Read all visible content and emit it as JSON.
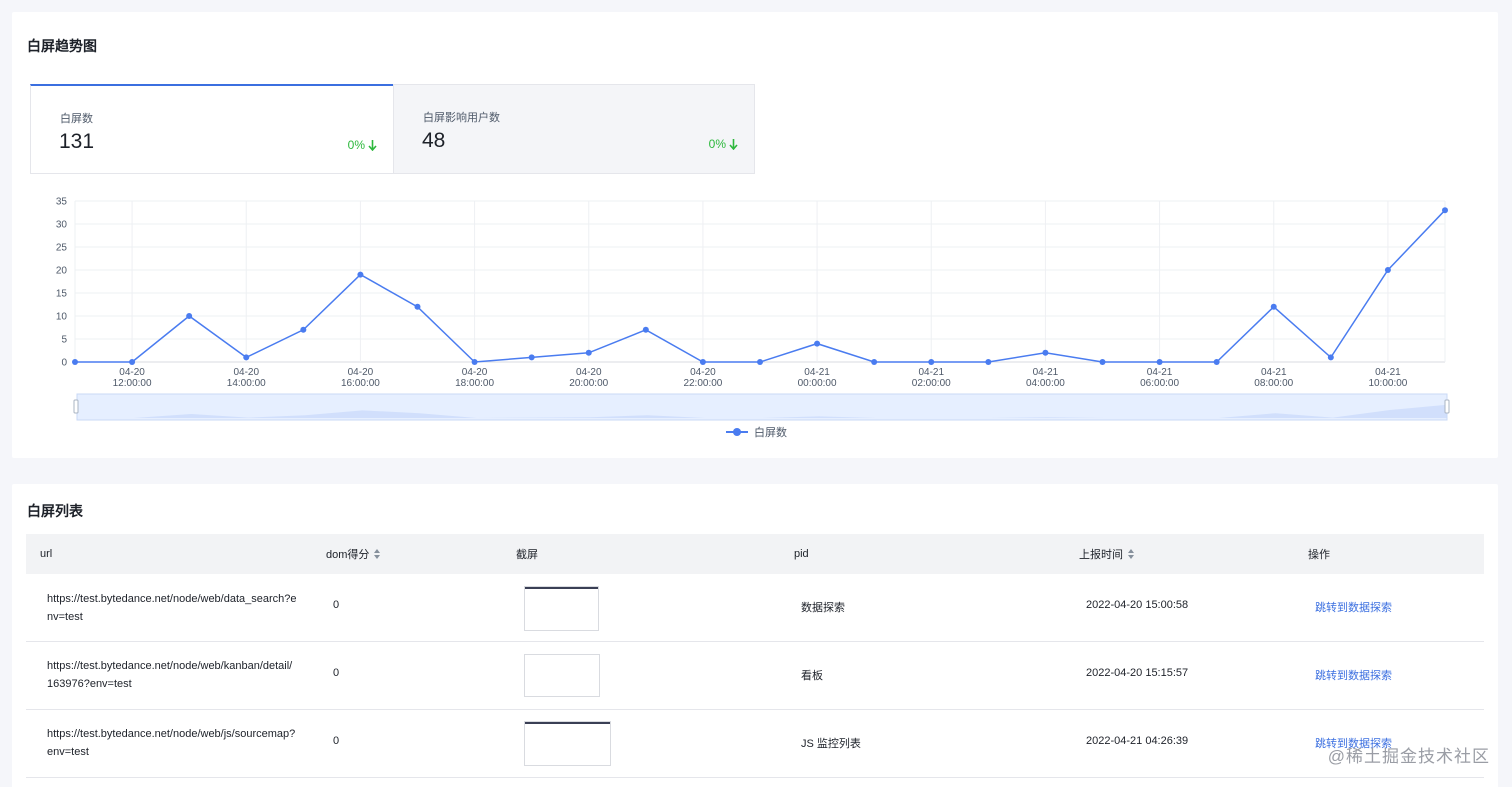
{
  "trend": {
    "title": "白屏趋势图",
    "metrics": [
      {
        "label": "白屏数",
        "value": "131",
        "change": "0%",
        "active": true
      },
      {
        "label": "白屏影响用户数",
        "value": "48",
        "change": "0%",
        "active": false
      }
    ]
  },
  "chart_data": {
    "type": "line",
    "x": [
      "04-20 11:00",
      "04-20 12:00",
      "04-20 13:00",
      "04-20 14:00",
      "04-20 15:00",
      "04-20 16:00",
      "04-20 17:00",
      "04-20 18:00",
      "04-20 19:00",
      "04-20 20:00",
      "04-20 21:00",
      "04-20 22:00",
      "04-20 23:00",
      "04-21 00:00",
      "04-21 01:00",
      "04-21 02:00",
      "04-21 03:00",
      "04-21 04:00",
      "04-21 05:00",
      "04-21 06:00",
      "04-21 07:00",
      "04-21 08:00",
      "04-21 09:00",
      "04-21 10:00",
      "04-21 11:00"
    ],
    "tick_labels": [
      {
        "date": "04-20",
        "time": "12:00:00"
      },
      {
        "date": "04-20",
        "time": "14:00:00"
      },
      {
        "date": "04-20",
        "time": "16:00:00"
      },
      {
        "date": "04-20",
        "time": "18:00:00"
      },
      {
        "date": "04-20",
        "time": "20:00:00"
      },
      {
        "date": "04-20",
        "time": "22:00:00"
      },
      {
        "date": "04-21",
        "time": "00:00:00"
      },
      {
        "date": "04-21",
        "time": "02:00:00"
      },
      {
        "date": "04-21",
        "time": "04:00:00"
      },
      {
        "date": "04-21",
        "time": "06:00:00"
      },
      {
        "date": "04-21",
        "time": "08:00:00"
      },
      {
        "date": "04-21",
        "time": "10:00:00"
      }
    ],
    "series": [
      {
        "name": "白屏数",
        "values": [
          0,
          0,
          10,
          1,
          7,
          19,
          12,
          0,
          1,
          2,
          7,
          0,
          0,
          4,
          0,
          0,
          0,
          2,
          0,
          0,
          0,
          12,
          1,
          20,
          33
        ]
      }
    ],
    "yticks": [
      0,
      5,
      10,
      15,
      20,
      25,
      30,
      35
    ],
    "ylim": [
      0,
      35
    ],
    "grid": true,
    "legend": "bottom-center",
    "data_zoom": true,
    "color": "#4a7cf0"
  },
  "list": {
    "title": "白屏列表",
    "columns": [
      {
        "label": "url",
        "sortable": false
      },
      {
        "label": "dom得分",
        "sortable": true
      },
      {
        "label": "截屏",
        "sortable": false
      },
      {
        "label": "pid",
        "sortable": false
      },
      {
        "label": "上报时间",
        "sortable": true
      },
      {
        "label": "操作",
        "sortable": false
      }
    ],
    "rows": [
      {
        "url": "https://test.bytedance.net/node/web/data_search?env=test",
        "dom_score": "0",
        "pid": "数据探索",
        "time": "2022-04-20 15:00:58",
        "action": "跳转到数据探索"
      },
      {
        "url": "https://test.bytedance.net/node/web/kanban/detail/163976?env=test",
        "dom_score": "0",
        "pid": "看板",
        "time": "2022-04-20 15:15:57",
        "action": "跳转到数据探索"
      },
      {
        "url": "https://test.bytedance.net/node/web/js/sourcemap?env=test",
        "dom_score": "0",
        "pid": "JS 监控列表",
        "time": "2022-04-21 04:26:39",
        "action": "跳转到数据探索"
      }
    ]
  },
  "watermark": "@稀土掘金技术社区"
}
